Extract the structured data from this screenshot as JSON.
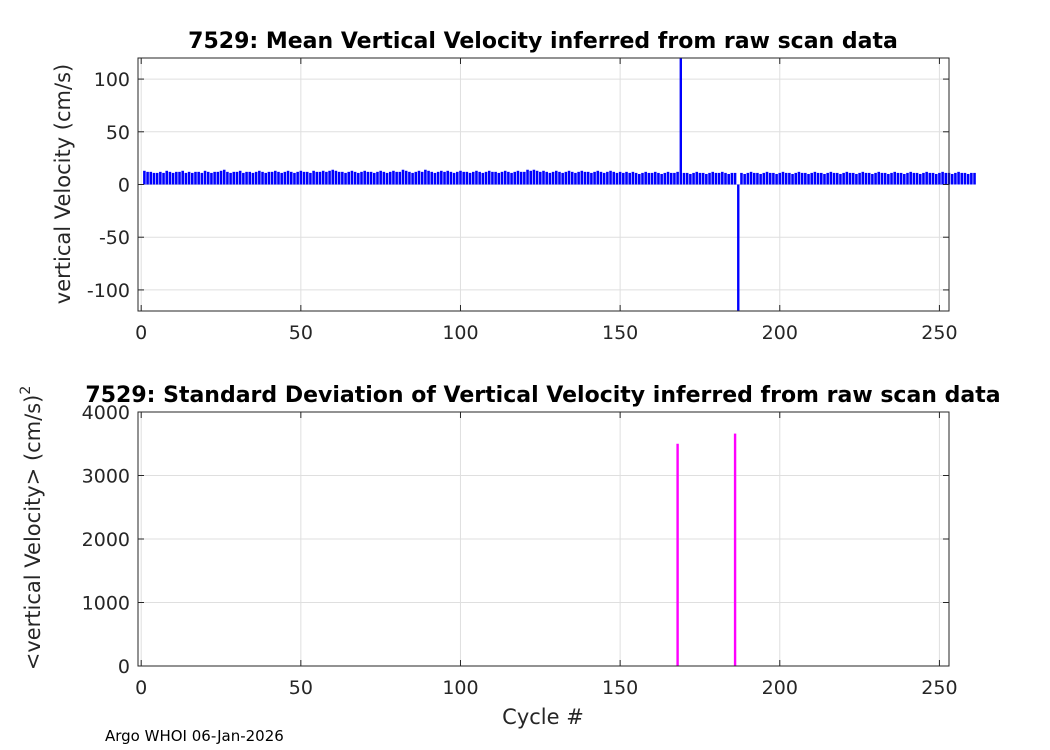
{
  "chart_data": [
    {
      "type": "bar",
      "title": "7529: Mean Vertical Velocity inferred from raw scan data",
      "xlabel": "",
      "ylabel": "vertical Velocity (cm/s)",
      "xlim": [
        -1,
        253
      ],
      "ylim": [
        -120,
        120
      ],
      "xticks": [
        0,
        50,
        100,
        150,
        200,
        250
      ],
      "yticks": [
        -100,
        -50,
        0,
        50,
        100
      ],
      "grid": true,
      "color": "#0000ff",
      "baseline_values": [
        13,
        12,
        12,
        11,
        11,
        12,
        11,
        13,
        12,
        11,
        12,
        12,
        13,
        11,
        12,
        11,
        12,
        12,
        11,
        13,
        12,
        11,
        12,
        12,
        13,
        14,
        12,
        11,
        12,
        12,
        13,
        11,
        12,
        12,
        11,
        12,
        13,
        12,
        11,
        12,
        12,
        13,
        12,
        11,
        12,
        13,
        12,
        11,
        12,
        13,
        12,
        12,
        11,
        13,
        12,
        12,
        13,
        12,
        13,
        14,
        13,
        12,
        12,
        11,
        12,
        13,
        12,
        11,
        12,
        13,
        12,
        12,
        11,
        12,
        13,
        12,
        11,
        12,
        13,
        12,
        12,
        14,
        13,
        12,
        11,
        12,
        13,
        12,
        14,
        13,
        12,
        11,
        12,
        13,
        12,
        13,
        12,
        11,
        12,
        13,
        12,
        12,
        11,
        12,
        13,
        12,
        11,
        12,
        13,
        12,
        12,
        11,
        12,
        13,
        12,
        11,
        12,
        13,
        12,
        12,
        14,
        13,
        14,
        13,
        12,
        13,
        12,
        11,
        12,
        13,
        12,
        11,
        12,
        13,
        12,
        11,
        12,
        13,
        12,
        12,
        11,
        12,
        13,
        12,
        11,
        12,
        13,
        12,
        11,
        12,
        11,
        12,
        11,
        12,
        11,
        10,
        11,
        12,
        11,
        11,
        12,
        11,
        10,
        11,
        12,
        11,
        11,
        12,
        120,
        11,
        11,
        10,
        11,
        12,
        11,
        11,
        10,
        11,
        12,
        11,
        11,
        12,
        11,
        10,
        11,
        11,
        -120,
        11,
        10,
        11,
        12,
        11,
        11,
        10,
        11,
        12,
        11,
        11,
        10,
        11,
        12,
        11,
        11,
        10,
        11,
        12,
        11,
        11,
        10,
        11,
        12,
        11,
        11,
        10,
        11,
        12,
        11,
        11,
        10,
        11,
        12,
        11,
        11,
        10,
        11,
        12,
        11,
        11,
        10,
        11,
        12,
        11,
        11,
        10,
        11,
        12,
        11,
        11,
        10,
        11,
        12,
        11,
        11,
        10,
        11,
        12,
        11,
        11,
        10,
        11,
        12,
        11,
        11,
        10,
        11,
        12,
        11,
        11,
        10,
        11,
        11
      ]
    },
    {
      "type": "bar",
      "title": "7529: Standard Deviation of Vertical Velocity inferred from raw scan data",
      "xlabel": "Cycle #",
      "ylabel": "<vertical Velocity> (cm/s)",
      "ylabel_superscript": "2",
      "xlim": [
        -1,
        253
      ],
      "ylim": [
        0,
        4000
      ],
      "xticks": [
        0,
        50,
        100,
        150,
        200,
        250
      ],
      "yticks": [
        0,
        1000,
        2000,
        3000,
        4000
      ],
      "grid": true,
      "color": "#ff00ff",
      "points": [
        {
          "x": 168,
          "y": 3500
        },
        {
          "x": 186,
          "y": 3660
        }
      ]
    }
  ],
  "footer": "Argo WHOI 06-Jan-2026"
}
